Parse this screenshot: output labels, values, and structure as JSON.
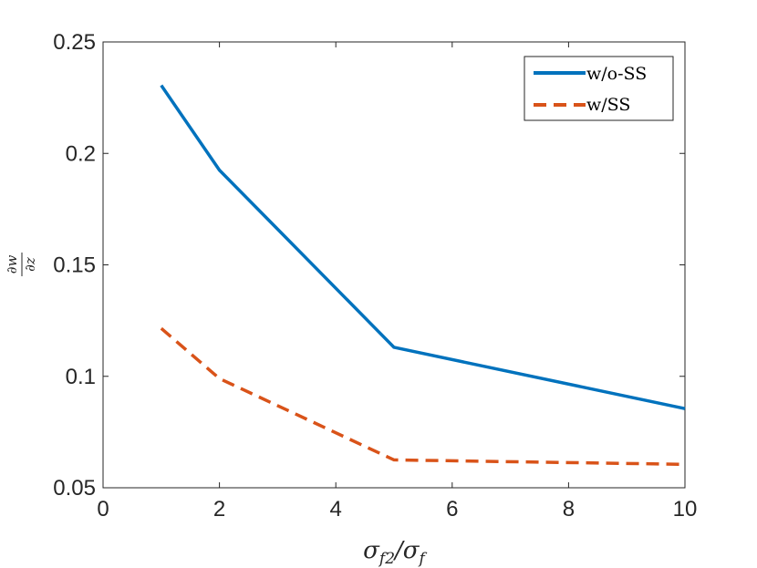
{
  "chart_data": {
    "type": "line",
    "xlabel": "σf2/σf",
    "ylabel": "∂w/∂z",
    "xlim": [
      0,
      10
    ],
    "ylim": [
      0.05,
      0.25
    ],
    "x_ticks": [
      "0",
      "2",
      "4",
      "6",
      "8",
      "10"
    ],
    "y_ticks": [
      "0.05",
      "0.1",
      "0.15",
      "0.2",
      "0.25"
    ],
    "x": [
      1,
      2,
      5,
      10
    ],
    "series": [
      {
        "name": "w/o-SS",
        "values": [
          0.2305,
          0.1925,
          0.113,
          0.0855
        ],
        "color": "#0072BD",
        "style": "solid"
      },
      {
        "name": "w/SS",
        "values": [
          0.1215,
          0.099,
          0.0625,
          0.0605
        ],
        "color": "#D95319",
        "style": "dashed"
      }
    ],
    "legend_position": "top-right",
    "grid": false
  }
}
